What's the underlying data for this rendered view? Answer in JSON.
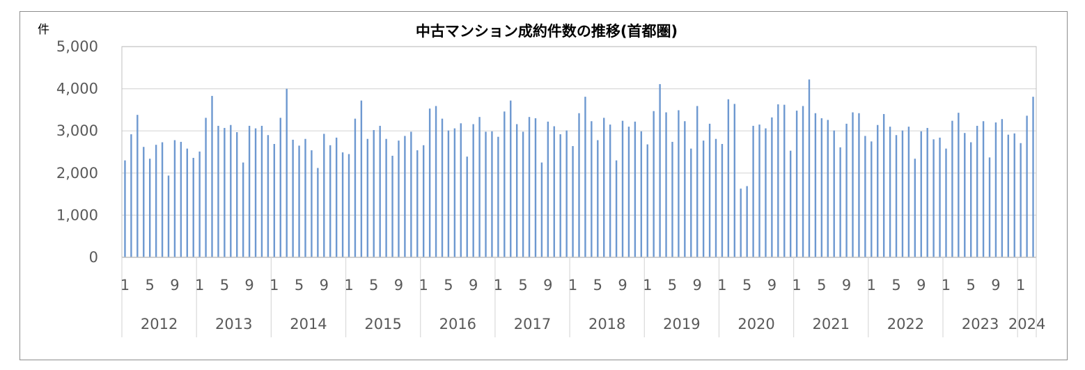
{
  "chart_data": {
    "type": "bar",
    "title": "中古マンション成約件数の推移(首都圏)",
    "ylabel": "件",
    "ylim": [
      0,
      5000
    ],
    "yticks": [
      "5,000",
      "4,000",
      "3,000",
      "2,000",
      "1,000",
      "0"
    ],
    "ytick_values": [
      5000,
      4000,
      3000,
      2000,
      1000,
      0
    ],
    "grid": true,
    "legend": "none",
    "bar_color": "#6d98d0",
    "x_month_labels": [
      "1",
      "5",
      "9"
    ],
    "years": [
      "2012",
      "2013",
      "2014",
      "2015",
      "2016",
      "2017",
      "2018",
      "2019",
      "2020",
      "2021",
      "2022",
      "2023",
      "2024"
    ],
    "values": [
      2300,
      2920,
      3380,
      2620,
      2340,
      2670,
      2730,
      1940,
      2780,
      2740,
      2580,
      2360,
      2510,
      3310,
      3830,
      3120,
      3070,
      3140,
      2970,
      2250,
      3120,
      3060,
      3120,
      2900,
      2690,
      3310,
      4000,
      2790,
      2650,
      2810,
      2540,
      2120,
      2930,
      2660,
      2840,
      2490,
      2450,
      3290,
      3720,
      2810,
      3020,
      3120,
      2810,
      2410,
      2770,
      2880,
      2980,
      2540,
      2660,
      3530,
      3590,
      3290,
      3010,
      3060,
      3180,
      2390,
      3160,
      3330,
      2980,
      2990,
      2860,
      3460,
      3720,
      3160,
      2980,
      3330,
      3300,
      2250,
      3220,
      3110,
      2920,
      3010,
      2640,
      3420,
      3810,
      3230,
      2780,
      3310,
      3150,
      2300,
      3240,
      3100,
      3220,
      2990,
      2680,
      3470,
      4110,
      3440,
      2740,
      3490,
      3230,
      2580,
      3590,
      2770,
      3170,
      2810,
      2690,
      3750,
      3640,
      1630,
      1690,
      3120,
      3150,
      3060,
      3320,
      3630,
      3620,
      2530,
      3480,
      3590,
      4220,
      3420,
      3300,
      3260,
      3010,
      2610,
      3170,
      3440,
      3420,
      2880,
      2750,
      3140,
      3400,
      3100,
      2900,
      3010,
      3100,
      2340,
      2990,
      3070,
      2800,
      2840,
      2580,
      3240,
      3430,
      2950,
      2730,
      3120,
      3230,
      2370,
      3200,
      3280,
      2910,
      2940,
      2710,
      3360,
      3810
    ]
  }
}
